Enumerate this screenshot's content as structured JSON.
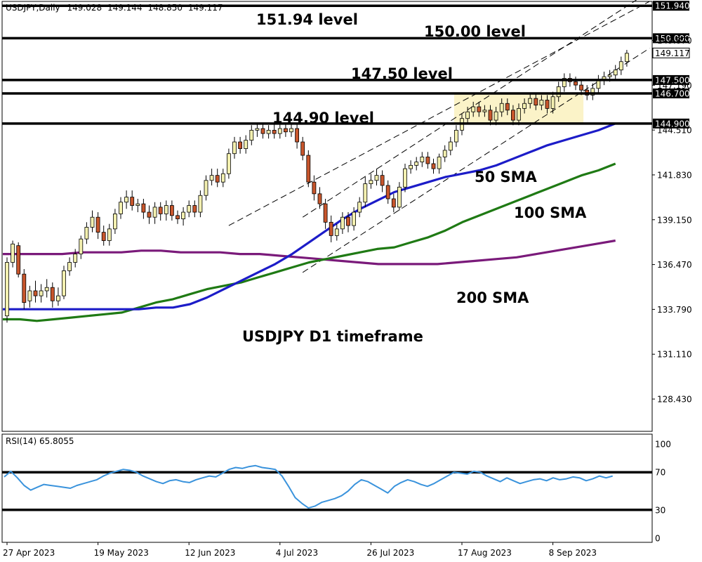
{
  "header": {
    "symbol": "USDJPY,Daily",
    "open": "149.028",
    "high": "149.144",
    "low": "148.850",
    "close": "149.117"
  },
  "chart_data": [
    {
      "type": "candlestick",
      "title": "USDJPY D1 timeframe",
      "x_labels": [
        "27 Apr 2023",
        "19 May 2023",
        "12 Jun 2023",
        "4 Jul 2023",
        "26 Jul 2023",
        "17 Aug 2023",
        "8 Sep 2023"
      ],
      "x_label_bar_index": [
        0,
        16,
        32,
        48,
        64,
        80,
        96
      ],
      "y_ticks": [
        "128.430",
        "131.110",
        "133.790",
        "136.470",
        "139.150",
        "141.830",
        "144.510",
        "147.190",
        "149.870"
      ],
      "ylim": [
        126.5,
        152.2
      ],
      "current_price": "149.117",
      "candles": [
        [
          133.4,
          136.6,
          133.0,
          136.9
        ],
        [
          136.6,
          137.7,
          136.3,
          137.9
        ],
        [
          137.6,
          135.9,
          135.7,
          137.8
        ],
        [
          135.9,
          134.2,
          133.8,
          136.2
        ],
        [
          134.3,
          134.9,
          133.9,
          135.2
        ],
        [
          134.9,
          134.6,
          134.2,
          135.5
        ],
        [
          134.6,
          134.9,
          134.2,
          135.3
        ],
        [
          134.9,
          135.1,
          134.5,
          135.6
        ],
        [
          135.1,
          134.3,
          133.9,
          135.4
        ],
        [
          134.3,
          134.6,
          134.0,
          135.1
        ],
        [
          134.6,
          136.1,
          134.4,
          136.4
        ],
        [
          136.1,
          136.6,
          135.8,
          136.9
        ],
        [
          136.6,
          137.1,
          136.3,
          137.4
        ],
        [
          137.1,
          138.0,
          136.8,
          138.2
        ],
        [
          138.0,
          138.7,
          137.7,
          139.0
        ],
        [
          138.7,
          139.3,
          138.4,
          139.7
        ],
        [
          139.3,
          138.4,
          138.0,
          139.6
        ],
        [
          138.4,
          137.9,
          137.6,
          138.8
        ],
        [
          137.9,
          138.6,
          137.6,
          138.9
        ],
        [
          138.6,
          139.5,
          138.3,
          139.8
        ],
        [
          139.5,
          140.2,
          139.2,
          140.5
        ],
        [
          140.2,
          140.5,
          139.8,
          140.9
        ],
        [
          140.5,
          140.0,
          139.7,
          140.9
        ],
        [
          140.0,
          140.1,
          139.6,
          140.4
        ],
        [
          140.1,
          139.6,
          139.2,
          140.4
        ],
        [
          139.6,
          139.3,
          138.9,
          140.0
        ],
        [
          139.3,
          139.9,
          138.9,
          140.2
        ],
        [
          139.9,
          139.5,
          139.1,
          140.2
        ],
        [
          139.5,
          140.0,
          139.1,
          140.3
        ],
        [
          140.0,
          139.4,
          139.1,
          140.3
        ],
        [
          139.4,
          139.2,
          138.9,
          139.7
        ],
        [
          139.2,
          139.6,
          138.8,
          139.9
        ],
        [
          139.6,
          140.0,
          139.3,
          140.3
        ],
        [
          140.0,
          139.6,
          139.3,
          140.3
        ],
        [
          139.6,
          140.6,
          139.3,
          140.9
        ],
        [
          140.6,
          141.5,
          140.3,
          141.8
        ],
        [
          141.5,
          141.8,
          141.2,
          142.2
        ],
        [
          141.8,
          141.4,
          141.1,
          142.2
        ],
        [
          141.4,
          141.9,
          141.1,
          142.2
        ],
        [
          141.9,
          143.1,
          141.6,
          143.4
        ],
        [
          143.1,
          143.8,
          142.8,
          144.1
        ],
        [
          143.8,
          143.4,
          143.1,
          144.1
        ],
        [
          143.4,
          143.9,
          143.1,
          144.2
        ],
        [
          143.9,
          144.5,
          143.6,
          144.8
        ],
        [
          144.5,
          144.6,
          144.1,
          144.9
        ],
        [
          144.6,
          144.3,
          144.0,
          144.9
        ],
        [
          144.3,
          144.5,
          144.0,
          144.8
        ],
        [
          144.5,
          144.3,
          144.0,
          144.9
        ],
        [
          144.3,
          144.6,
          144.0,
          144.9
        ],
        [
          144.6,
          144.4,
          144.1,
          144.9
        ],
        [
          144.4,
          144.6,
          144.1,
          144.9
        ],
        [
          144.6,
          143.8,
          143.4,
          144.9
        ],
        [
          143.8,
          143.0,
          142.7,
          144.1
        ],
        [
          143.0,
          141.4,
          141.1,
          143.3
        ],
        [
          141.4,
          140.7,
          140.3,
          141.8
        ],
        [
          140.7,
          140.1,
          139.8,
          141.1
        ],
        [
          140.1,
          139.0,
          138.6,
          140.4
        ],
        [
          139.0,
          138.2,
          137.8,
          139.4
        ],
        [
          138.2,
          138.6,
          137.9,
          138.9
        ],
        [
          138.6,
          139.3,
          138.3,
          139.6
        ],
        [
          139.3,
          138.8,
          138.4,
          139.6
        ],
        [
          138.8,
          139.6,
          138.5,
          139.9
        ],
        [
          139.6,
          140.2,
          139.3,
          140.5
        ],
        [
          140.2,
          141.3,
          139.9,
          141.7
        ],
        [
          141.3,
          141.5,
          141.0,
          141.9
        ],
        [
          141.5,
          141.8,
          141.2,
          142.2
        ],
        [
          141.8,
          141.2,
          140.8,
          142.1
        ],
        [
          141.2,
          140.4,
          140.1,
          141.5
        ],
        [
          140.4,
          139.9,
          139.6,
          140.7
        ],
        [
          139.9,
          141.1,
          139.7,
          141.4
        ],
        [
          141.1,
          142.2,
          140.8,
          142.5
        ],
        [
          142.2,
          142.4,
          141.9,
          142.7
        ],
        [
          142.4,
          142.6,
          142.1,
          142.9
        ],
        [
          142.6,
          142.9,
          142.3,
          143.2
        ],
        [
          142.9,
          142.5,
          142.2,
          143.2
        ],
        [
          142.5,
          142.2,
          141.9,
          142.8
        ],
        [
          142.2,
          142.9,
          141.9,
          143.1
        ],
        [
          142.9,
          143.3,
          142.6,
          143.6
        ],
        [
          143.3,
          143.8,
          143.0,
          144.1
        ],
        [
          143.8,
          144.5,
          143.5,
          144.8
        ],
        [
          144.5,
          145.2,
          144.2,
          145.5
        ],
        [
          145.2,
          145.6,
          144.9,
          145.9
        ],
        [
          145.6,
          145.9,
          145.3,
          146.2
        ],
        [
          145.9,
          145.6,
          145.3,
          146.2
        ],
        [
          145.6,
          145.7,
          145.3,
          146.0
        ],
        [
          145.7,
          145.1,
          144.8,
          146.0
        ],
        [
          145.1,
          145.6,
          144.8,
          145.9
        ],
        [
          145.6,
          146.1,
          145.3,
          146.4
        ],
        [
          146.1,
          145.7,
          145.4,
          146.4
        ],
        [
          145.7,
          145.1,
          144.8,
          146.0
        ],
        [
          145.1,
          145.8,
          144.8,
          146.1
        ],
        [
          145.8,
          146.1,
          145.5,
          146.4
        ],
        [
          146.1,
          146.4,
          145.8,
          146.7
        ],
        [
          146.4,
          146.0,
          145.7,
          146.7
        ],
        [
          146.0,
          146.3,
          145.7,
          146.6
        ],
        [
          146.3,
          145.8,
          145.5,
          146.6
        ],
        [
          145.8,
          146.5,
          145.5,
          146.8
        ],
        [
          146.5,
          147.1,
          146.2,
          147.4
        ],
        [
          147.1,
          147.6,
          146.8,
          147.9
        ],
        [
          147.6,
          147.4,
          147.1,
          147.9
        ],
        [
          147.4,
          147.2,
          146.9,
          147.7
        ],
        [
          147.2,
          146.9,
          146.6,
          147.5
        ],
        [
          146.9,
          146.6,
          146.3,
          147.2
        ],
        [
          146.6,
          147.0,
          146.3,
          147.3
        ],
        [
          147.0,
          147.5,
          146.7,
          147.8
        ],
        [
          147.5,
          147.7,
          147.2,
          148.0
        ],
        [
          147.7,
          147.8,
          147.4,
          148.1
        ],
        [
          147.8,
          148.1,
          147.5,
          148.4
        ],
        [
          148.1,
          148.6,
          147.8,
          148.9
        ],
        [
          148.6,
          149.1,
          148.3,
          149.3
        ]
      ],
      "sma_50": [
        133.8,
        133.8,
        133.8,
        133.8,
        133.8,
        133.8,
        133.8,
        133.8,
        133.8,
        133.9,
        133.9,
        134.1,
        134.5,
        135.0,
        135.5,
        136.0,
        136.5,
        137.1,
        137.8,
        138.5,
        139.2,
        139.8,
        140.3,
        140.8,
        141.1,
        141.4,
        141.7,
        141.9,
        142.1,
        142.4,
        142.8,
        143.2,
        143.6,
        143.9,
        144.2,
        144.5,
        144.9
      ],
      "sma_100": [
        133.2,
        133.2,
        133.1,
        133.2,
        133.3,
        133.4,
        133.5,
        133.6,
        133.9,
        134.2,
        134.4,
        134.7,
        135.0,
        135.2,
        135.4,
        135.7,
        136.0,
        136.3,
        136.6,
        136.8,
        137.0,
        137.2,
        137.4,
        137.5,
        137.8,
        138.1,
        138.5,
        139.0,
        139.4,
        139.8,
        140.2,
        140.6,
        141.0,
        141.4,
        141.8,
        142.1,
        142.5
      ],
      "sma_200": [
        137.1,
        137.1,
        137.1,
        137.1,
        137.2,
        137.2,
        137.2,
        137.3,
        137.3,
        137.2,
        137.2,
        137.2,
        137.1,
        137.1,
        137.0,
        136.9,
        136.8,
        136.7,
        136.6,
        136.5,
        136.5,
        136.5,
        136.5,
        136.6,
        136.7,
        136.8,
        136.9,
        137.1,
        137.3,
        137.5,
        137.7,
        137.9
      ],
      "levels": [
        {
          "value": 151.94,
          "tag": "151.940",
          "label": "151.94 level"
        },
        {
          "value": 150.0,
          "tag": "150.000",
          "label": "150.00 level"
        },
        {
          "value": 147.5,
          "tag": "147.500",
          "label": "147.50 level"
        },
        {
          "value": 146.7,
          "tag": "146.700",
          "label": ""
        },
        {
          "value": 144.9,
          "tag": "144.900",
          "label": "144.90 level"
        }
      ],
      "sma_labels": [
        "50 SMA",
        "100 SMA",
        "200 SMA"
      ],
      "sma_colors": [
        "#1c1cc8",
        "#1f7a14",
        "#7a1a7a"
      ],
      "consolidation_box": {
        "from_bar": 79,
        "to_bar": 101,
        "low": 144.9,
        "high": 146.7
      }
    },
    {
      "type": "line",
      "title": "RSI(14) 65.8055",
      "ylim": [
        0,
        100
      ],
      "y_ticks": [
        "100",
        "70",
        "30",
        "0"
      ],
      "levels": [
        70,
        30
      ],
      "values": [
        65,
        71,
        64,
        56,
        51,
        54,
        57,
        56,
        55,
        54,
        53,
        56,
        58,
        60,
        62,
        66,
        69,
        71,
        73,
        72,
        70,
        66,
        63,
        60,
        58,
        61,
        62,
        60,
        59,
        62,
        64,
        66,
        65,
        69,
        73,
        75,
        74,
        76,
        77,
        75,
        74,
        73,
        66,
        55,
        43,
        37,
        32,
        34,
        38,
        40,
        42,
        45,
        50,
        57,
        62,
        60,
        56,
        52,
        48,
        55,
        59,
        62,
        60,
        57,
        55,
        58,
        62,
        66,
        70,
        69,
        68,
        71,
        70,
        66,
        63,
        60,
        64,
        61,
        58,
        60,
        62,
        63,
        61,
        64,
        62,
        63,
        65,
        64,
        61,
        63,
        66,
        64,
        66
      ]
    }
  ]
}
